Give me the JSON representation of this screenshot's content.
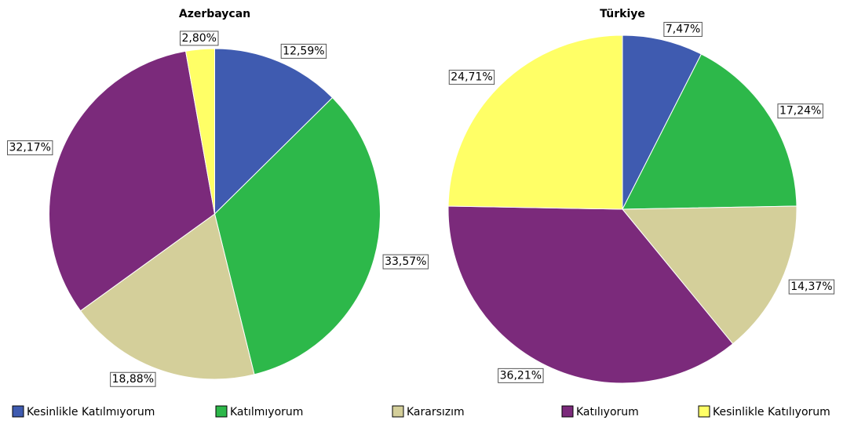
{
  "chart_data": [
    {
      "type": "pie",
      "title": "Azerbaycan",
      "categories": [
        "Kesinlikle Katılmıyorum",
        "Katılmıyorum",
        "Kararsızım",
        "Katılıyorum",
        "Kesinlikle Katılıyorum"
      ],
      "values": [
        12.59,
        33.57,
        18.88,
        32.17,
        2.8
      ],
      "value_labels": [
        "12,59%",
        "33,57%",
        "18,88%",
        "32,17%",
        "2,80%"
      ],
      "colors": [
        "#3f5bb0",
        "#2db84a",
        "#d4cf9a",
        "#7b2a7b",
        "#ffff66"
      ]
    },
    {
      "type": "pie",
      "title": "Türkiye",
      "categories": [
        "Kesinlikle Katılmıyorum",
        "Katılmıyorum",
        "Kararsızım",
        "Katılıyorum",
        "Kesinlikle Katılıyorum"
      ],
      "values": [
        7.47,
        17.24,
        14.37,
        36.21,
        24.71
      ],
      "value_labels": [
        "7,47%",
        "17,24%",
        "14,37%",
        "36,21%",
        "24,71%"
      ],
      "colors": [
        "#3f5bb0",
        "#2db84a",
        "#d4cf9a",
        "#7b2a7b",
        "#ffff66"
      ]
    }
  ]
}
